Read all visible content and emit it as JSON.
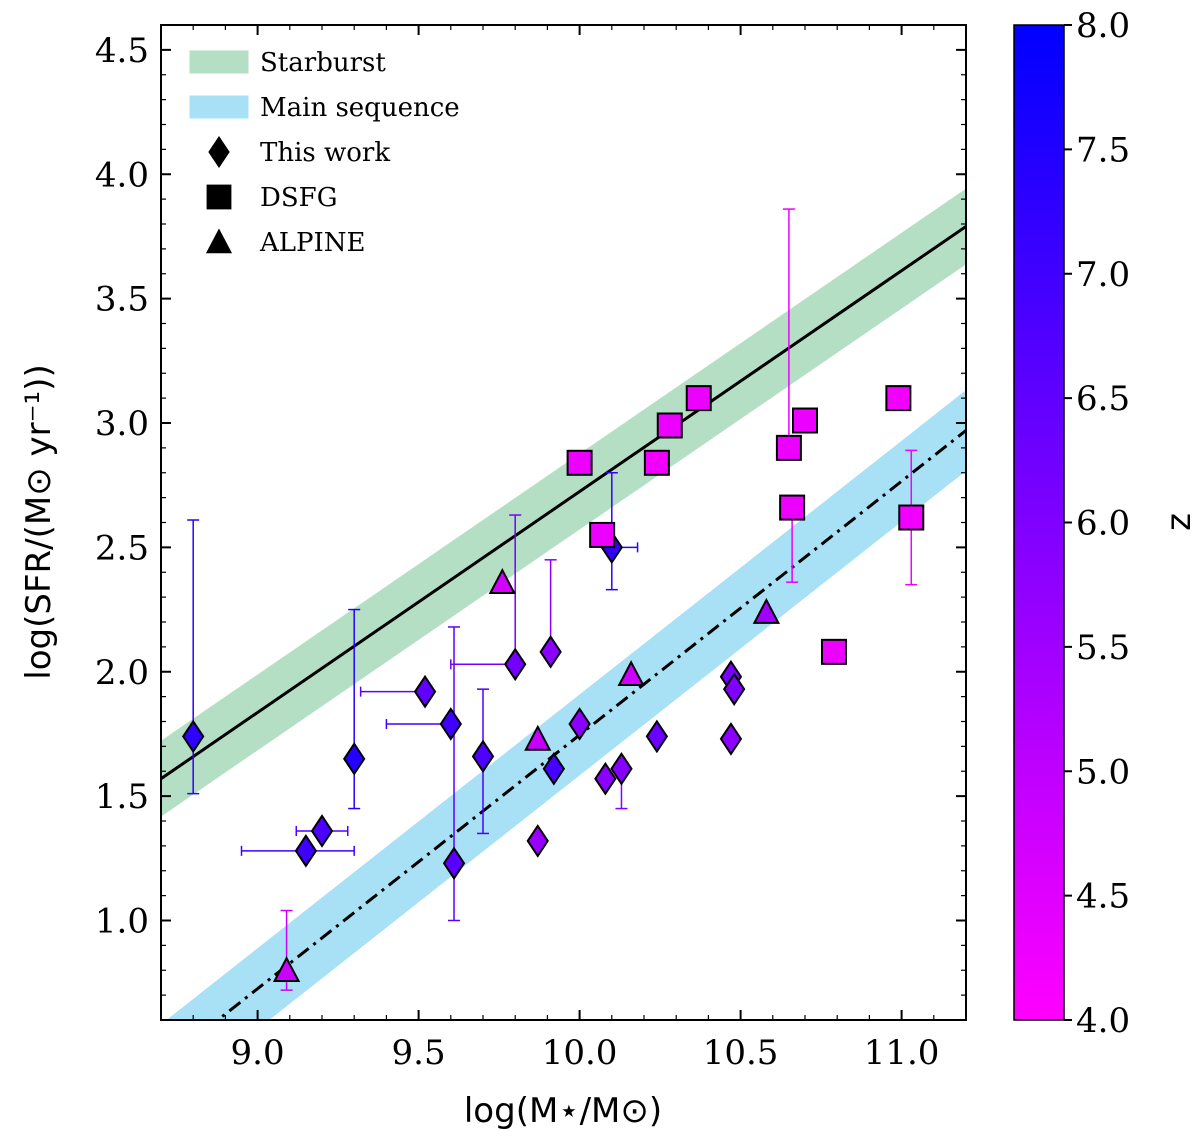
{
  "chart_data": {
    "type": "scatter",
    "xlabel": "log(M⋆/M⊙)",
    "ylabel": "log(SFR/(M⊙ yr⁻¹))",
    "xlim": [
      8.7,
      11.2
    ],
    "ylim": [
      0.6,
      4.6
    ],
    "xticks": [
      "9.0",
      "9.5",
      "10.0",
      "10.5",
      "11.0"
    ],
    "yticks": [
      "1.0",
      "1.5",
      "2.0",
      "2.5",
      "3.0",
      "3.5",
      "4.0",
      "4.5"
    ],
    "colorbar": {
      "label": "z",
      "range": [
        4.0,
        8.0
      ],
      "ticks": [
        "4.0",
        "4.5",
        "5.0",
        "5.5",
        "6.0",
        "6.5",
        "7.0",
        "7.5",
        "8.0"
      ],
      "color_low": "#ff00ff",
      "color_high": "#0000ff"
    },
    "legend": {
      "position": "top-left",
      "entries": [
        {
          "label": "Starburst",
          "kind": "band",
          "color": "#b5dfc4"
        },
        {
          "label": "Main sequence",
          "kind": "band",
          "color": "#a8e0f5"
        },
        {
          "label": "This work",
          "kind": "marker",
          "marker": "diamond"
        },
        {
          "label": "DSFG",
          "kind": "marker",
          "marker": "square"
        },
        {
          "label": "ALPINE",
          "kind": "marker",
          "marker": "triangle"
        }
      ]
    },
    "lines": [
      {
        "name": "Starburst",
        "style": "solid",
        "x": [
          8.7,
          11.2
        ],
        "y": [
          1.57,
          3.79
        ],
        "band_halfwidth": 0.15,
        "band_color": "#b5dfc4"
      },
      {
        "name": "Main sequence",
        "style": "dashdot",
        "x": [
          8.7,
          11.2
        ],
        "y": [
          0.42,
          2.97
        ],
        "band_halfwidth": 0.16,
        "band_color": "#a8e0f5"
      }
    ],
    "series": [
      {
        "name": "This work",
        "marker": "diamond",
        "points": [
          {
            "x": 8.8,
            "y": 1.74,
            "z": 7.3,
            "xerr": [
              0.0,
              0.0
            ],
            "yerr": [
              0.23,
              0.87
            ]
          },
          {
            "x": 9.15,
            "y": 1.28,
            "z": 7.0,
            "xerr": [
              0.2,
              0.15
            ],
            "yerr": [
              0.0,
              0.0
            ]
          },
          {
            "x": 9.2,
            "y": 1.36,
            "z": 6.8,
            "xerr": [
              0.08,
              0.08
            ],
            "yerr": [
              0.0,
              0.0
            ]
          },
          {
            "x": 9.3,
            "y": 1.65,
            "z": 7.4,
            "xerr": [
              0.0,
              0.0
            ],
            "yerr": [
              0.2,
              0.6
            ]
          },
          {
            "x": 9.52,
            "y": 1.92,
            "z": 6.5,
            "xerr": [
              0.2,
              0.0
            ],
            "yerr": [
              0.0,
              0.0
            ]
          },
          {
            "x": 9.6,
            "y": 1.79,
            "z": 7.0,
            "xerr": [
              0.2,
              0.0
            ],
            "yerr": [
              0.0,
              0.0
            ]
          },
          {
            "x": 9.61,
            "y": 1.23,
            "z": 6.6,
            "xerr": [
              0.0,
              0.0
            ],
            "yerr": [
              0.23,
              0.95
            ]
          },
          {
            "x": 9.7,
            "y": 1.66,
            "z": 6.8,
            "xerr": [
              0.0,
              0.0
            ],
            "yerr": [
              0.31,
              0.27
            ]
          },
          {
            "x": 9.8,
            "y": 2.03,
            "z": 6.2,
            "xerr": [
              0.2,
              0.0
            ],
            "yerr": [
              0.0,
              0.6
            ]
          },
          {
            "x": 9.87,
            "y": 1.32,
            "z": 5.6,
            "xerr": [
              0.0,
              0.0
            ],
            "yerr": [
              0.0,
              0.0
            ]
          },
          {
            "x": 9.91,
            "y": 2.08,
            "z": 5.8,
            "xerr": [
              0.0,
              0.0
            ],
            "yerr": [
              0.0,
              0.37
            ]
          },
          {
            "x": 9.92,
            "y": 1.61,
            "z": 6.9,
            "xerr": [
              0.0,
              0.0
            ],
            "yerr": [
              0.0,
              0.0
            ]
          },
          {
            "x": 10.0,
            "y": 1.79,
            "z": 5.8,
            "xerr": [
              0.0,
              0.0
            ],
            "yerr": [
              0.0,
              0.0
            ]
          },
          {
            "x": 10.08,
            "y": 1.57,
            "z": 5.8,
            "xerr": [
              0.0,
              0.0
            ],
            "yerr": [
              0.0,
              0.0
            ]
          },
          {
            "x": 10.1,
            "y": 2.5,
            "z": 7.2,
            "xerr": [
              0.0,
              0.08
            ],
            "yerr": [
              0.17,
              0.3
            ]
          },
          {
            "x": 10.13,
            "y": 1.61,
            "z": 5.9,
            "xerr": [
              0.0,
              0.0
            ],
            "yerr": [
              0.16,
              0.0
            ]
          },
          {
            "x": 10.24,
            "y": 1.74,
            "z": 6.3,
            "xerr": [
              0.0,
              0.0
            ],
            "yerr": [
              0.0,
              0.0
            ]
          },
          {
            "x": 10.47,
            "y": 1.98,
            "z": 6.1,
            "xerr": [
              0.0,
              0.0
            ],
            "yerr": [
              0.0,
              0.0
            ]
          },
          {
            "x": 10.48,
            "y": 1.93,
            "z": 6.0,
            "xerr": [
              0.0,
              0.0
            ],
            "yerr": [
              0.0,
              0.0
            ]
          },
          {
            "x": 10.47,
            "y": 1.73,
            "z": 5.8,
            "xerr": [
              0.0,
              0.0
            ],
            "yerr": [
              0.0,
              0.0
            ]
          }
        ]
      },
      {
        "name": "DSFG",
        "marker": "square",
        "points": [
          {
            "x": 10.0,
            "y": 2.84,
            "z": 4.3,
            "xerr": [
              0.0,
              0.0
            ],
            "yerr": [
              0.0,
              0.0
            ]
          },
          {
            "x": 10.07,
            "y": 2.55,
            "z": 4.3,
            "xerr": [
              0.0,
              0.0
            ],
            "yerr": [
              0.0,
              0.0
            ]
          },
          {
            "x": 10.24,
            "y": 2.84,
            "z": 4.2,
            "xerr": [
              0.0,
              0.0
            ],
            "yerr": [
              0.0,
              0.0
            ]
          },
          {
            "x": 10.28,
            "y": 2.99,
            "z": 4.3,
            "xerr": [
              0.0,
              0.0
            ],
            "yerr": [
              0.0,
              0.0
            ]
          },
          {
            "x": 10.37,
            "y": 3.1,
            "z": 4.3,
            "xerr": [
              0.0,
              0.0
            ],
            "yerr": [
              0.0,
              0.0
            ]
          },
          {
            "x": 10.65,
            "y": 2.9,
            "z": 4.3,
            "xerr": [
              0.0,
              0.0
            ],
            "yerr": [
              0.0,
              0.96
            ]
          },
          {
            "x": 10.66,
            "y": 2.66,
            "z": 4.3,
            "xerr": [
              0.0,
              0.0
            ],
            "yerr": [
              0.3,
              0.0
            ]
          },
          {
            "x": 10.7,
            "y": 3.01,
            "z": 4.3,
            "xerr": [
              0.0,
              0.0
            ],
            "yerr": [
              0.0,
              0.0
            ]
          },
          {
            "x": 10.79,
            "y": 2.08,
            "z": 4.3,
            "xerr": [
              0.0,
              0.0
            ],
            "yerr": [
              0.0,
              0.0
            ]
          },
          {
            "x": 10.99,
            "y": 3.1,
            "z": 4.2,
            "xerr": [
              0.0,
              0.0
            ],
            "yerr": [
              0.0,
              0.0
            ]
          },
          {
            "x": 11.03,
            "y": 2.62,
            "z": 4.2,
            "xerr": [
              0.0,
              0.0
            ],
            "yerr": [
              0.27,
              0.27
            ]
          }
        ]
      },
      {
        "name": "ALPINE",
        "marker": "triangle",
        "points": [
          {
            "x": 9.09,
            "y": 0.8,
            "z": 4.8,
            "xerr": [
              0.0,
              0.0
            ],
            "yerr": [
              0.08,
              0.24
            ]
          },
          {
            "x": 9.76,
            "y": 2.36,
            "z": 4.7,
            "xerr": [
              0.0,
              0.0
            ],
            "yerr": [
              0.0,
              0.0
            ]
          },
          {
            "x": 9.87,
            "y": 1.73,
            "z": 4.9,
            "xerr": [
              0.0,
              0.0
            ],
            "yerr": [
              0.0,
              0.0
            ]
          },
          {
            "x": 10.16,
            "y": 1.99,
            "z": 4.8,
            "xerr": [
              0.0,
              0.0
            ],
            "yerr": [
              0.0,
              0.0
            ]
          },
          {
            "x": 10.58,
            "y": 2.24,
            "z": 5.5,
            "xerr": [
              0.0,
              0.0
            ],
            "yerr": [
              0.0,
              0.0
            ]
          }
        ]
      }
    ]
  }
}
